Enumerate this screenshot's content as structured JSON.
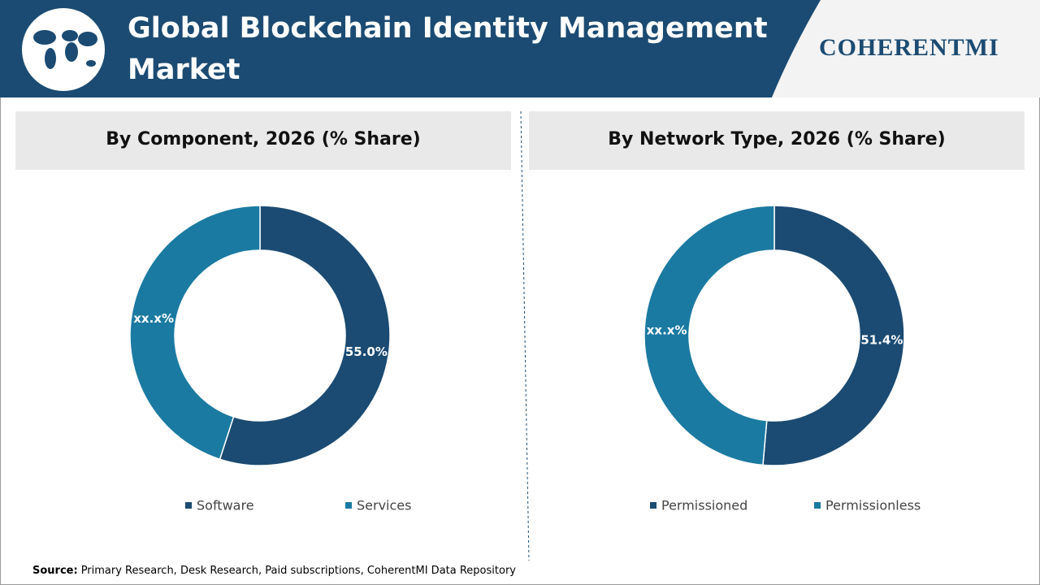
{
  "header": {
    "title": "Global Blockchain Identity Management Market",
    "logo": "COHERENTMI"
  },
  "chart_data": [
    {
      "type": "donut",
      "title": "By Component, 2026 (% Share)",
      "categories": [
        "Software",
        "Services"
      ],
      "values": [
        55.0,
        45.0
      ],
      "value_labels": [
        "55.0%",
        "xx.x%"
      ],
      "colors": [
        "#1b4b72",
        "#1b7aa1"
      ],
      "legend": "bottom"
    },
    {
      "type": "donut",
      "title": "By Network Type, 2026 (% Share)",
      "categories": [
        "Permissioned",
        "Permissionless"
      ],
      "values": [
        51.4,
        48.6
      ],
      "value_labels": [
        "51.4%",
        "xx.x%"
      ],
      "colors": [
        "#1b4b72",
        "#1b7aa1"
      ],
      "legend": "bottom"
    }
  ],
  "source": {
    "label": "Source:",
    "text": "Primary Research, Desk Research, Paid subscriptions, CoherentMI Data Repository"
  }
}
